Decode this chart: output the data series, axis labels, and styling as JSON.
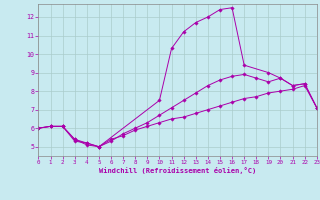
{
  "xlabel": "Windchill (Refroidissement éolien,°C)",
  "xlim": [
    0,
    23
  ],
  "ylim": [
    4.5,
    12.7
  ],
  "xticks": [
    0,
    1,
    2,
    3,
    4,
    5,
    6,
    7,
    8,
    9,
    10,
    11,
    12,
    13,
    14,
    15,
    16,
    17,
    18,
    19,
    20,
    21,
    22,
    23
  ],
  "yticks": [
    5,
    6,
    7,
    8,
    9,
    10,
    11,
    12
  ],
  "bg_color": "#c8eaf0",
  "line_color": "#aa00aa",
  "grid_color": "#aacccc",
  "curves": [
    {
      "x": [
        0,
        1,
        2,
        3,
        4,
        5,
        6,
        7,
        8,
        9,
        10,
        11,
        12,
        13,
        14,
        15,
        16,
        17,
        18,
        19,
        20,
        21,
        22,
        23
      ],
      "y": [
        6.0,
        6.1,
        6.1,
        5.3,
        5.2,
        5.0,
        5.4,
        5.6,
        5.9,
        6.1,
        6.3,
        6.5,
        6.6,
        6.8,
        7.0,
        7.2,
        7.4,
        7.6,
        7.7,
        7.9,
        8.0,
        8.1,
        8.3,
        7.1
      ]
    },
    {
      "x": [
        0,
        1,
        2,
        3,
        4,
        5,
        6,
        7,
        8,
        9,
        10,
        11,
        12,
        13,
        14,
        15,
        16,
        17,
        18,
        19,
        20,
        21,
        22,
        23
      ],
      "y": [
        6.0,
        6.1,
        6.1,
        5.4,
        5.1,
        5.0,
        5.3,
        5.7,
        6.0,
        6.3,
        6.7,
        7.1,
        7.5,
        7.9,
        8.3,
        8.6,
        8.8,
        8.9,
        8.7,
        8.5,
        8.7,
        8.3,
        8.4,
        7.1
      ]
    },
    {
      "x": [
        0,
        1,
        2,
        3,
        4,
        5,
        10,
        11,
        12,
        13,
        14,
        15,
        16,
        17,
        19,
        20,
        21,
        22,
        23
      ],
      "y": [
        6.0,
        6.1,
        6.1,
        5.4,
        5.2,
        5.0,
        7.5,
        10.3,
        11.2,
        11.7,
        12.0,
        12.4,
        12.5,
        9.4,
        9.0,
        8.7,
        8.3,
        8.4,
        7.1
      ]
    }
  ]
}
